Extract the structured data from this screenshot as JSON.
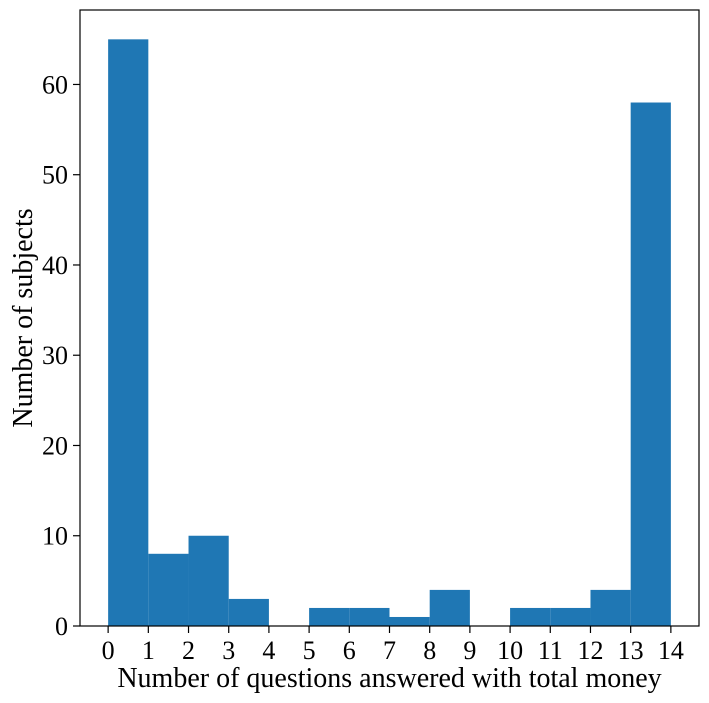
{
  "chart_data": {
    "type": "bar",
    "bin_edges": [
      0,
      1,
      2,
      3,
      4,
      5,
      6,
      7,
      8,
      9,
      10,
      11,
      12,
      13,
      14
    ],
    "values": [
      65,
      8,
      10,
      3,
      0,
      2,
      2,
      1,
      4,
      0,
      2,
      2,
      4,
      58
    ],
    "xlabel": "Number of questions answered with total money",
    "ylabel": "Number of subjects",
    "xticks": [
      "0",
      "1",
      "2",
      "3",
      "4",
      "5",
      "6",
      "7",
      "8",
      "9",
      "10",
      "11",
      "12",
      "13",
      "14"
    ],
    "yticks": [
      "0",
      "10",
      "20",
      "30",
      "40",
      "50",
      "60"
    ],
    "xlim": [
      -0.7,
      14.7
    ],
    "ylim": [
      0,
      68.25
    ],
    "bar_color": "#1f77b4",
    "grid": false
  }
}
